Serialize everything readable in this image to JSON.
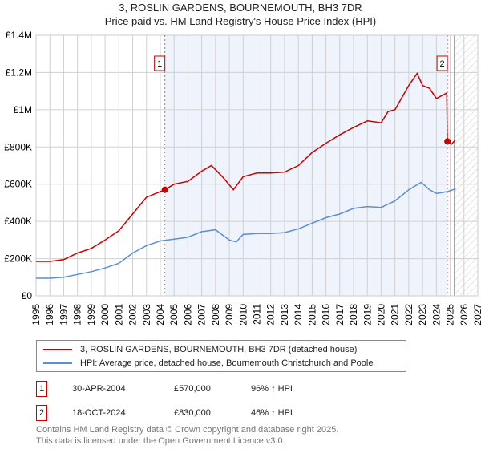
{
  "chart_data": {
    "type": "line",
    "title": "3, ROSLIN GARDENS, BOURNEMOUTH, BH3 7DR",
    "subtitle": "Price paid vs. HM Land Registry's House Price Index (HPI)",
    "xlim": [
      1995,
      2027
    ],
    "ylim": [
      0,
      1400000
    ],
    "x_ticks": [
      "1995",
      "1996",
      "1997",
      "1998",
      "1999",
      "2000",
      "2001",
      "2002",
      "2003",
      "2004",
      "2005",
      "2006",
      "2007",
      "2008",
      "2009",
      "2010",
      "2011",
      "2012",
      "2013",
      "2014",
      "2015",
      "2016",
      "2017",
      "2018",
      "2019",
      "2020",
      "2021",
      "2022",
      "2023",
      "2024",
      "2025",
      "2026",
      "2027"
    ],
    "y_ticks": [
      {
        "v": 0,
        "label": "£0"
      },
      {
        "v": 200000,
        "label": "£200K"
      },
      {
        "v": 400000,
        "label": "£400K"
      },
      {
        "v": 600000,
        "label": "£600K"
      },
      {
        "v": 800000,
        "label": "£800K"
      },
      {
        "v": 1000000,
        "label": "£1M"
      },
      {
        "v": 1200000,
        "label": "£1.2M"
      },
      {
        "v": 1400000,
        "label": "£1.4M"
      }
    ],
    "grid": true,
    "series": [
      {
        "name": "3, ROSLIN GARDENS, BOURNEMOUTH, BH3 7DR (detached house)",
        "color": "#cc0000",
        "x": [
          1995,
          1996,
          1997,
          1998,
          1999,
          2000,
          2001,
          2002,
          2003,
          2004.33,
          2005,
          2006,
          2007,
          2007.7,
          2008.5,
          2009.3,
          2010,
          2011,
          2012,
          2013,
          2014,
          2015,
          2016,
          2017,
          2018,
          2019,
          2020,
          2020.5,
          2021,
          2022,
          2022.6,
          2023,
          2023.5,
          2024,
          2024.75,
          2024.8,
          2025.1,
          2025.4
        ],
        "y": [
          185000,
          185000,
          195000,
          230000,
          255000,
          300000,
          350000,
          440000,
          530000,
          570000,
          600000,
          615000,
          670000,
          700000,
          640000,
          570000,
          640000,
          660000,
          660000,
          665000,
          700000,
          770000,
          820000,
          865000,
          905000,
          940000,
          930000,
          990000,
          1000000,
          1130000,
          1195000,
          1130000,
          1115000,
          1060000,
          1090000,
          830000,
          815000,
          840000
        ]
      },
      {
        "name": "HPI: Average price, detached house, Bournemouth Christchurch and Poole",
        "color": "#5b8fd0",
        "x": [
          1995,
          1996,
          1997,
          1998,
          1999,
          2000,
          2001,
          2002,
          2003,
          2004,
          2005,
          2006,
          2007,
          2008,
          2009,
          2009.5,
          2010,
          2011,
          2012,
          2013,
          2014,
          2015,
          2016,
          2017,
          2018,
          2019,
          2020,
          2021,
          2022,
          2022.9,
          2023.5,
          2024,
          2024.8,
          2025.4
        ],
        "y": [
          95000,
          95000,
          100000,
          115000,
          130000,
          150000,
          175000,
          230000,
          270000,
          295000,
          305000,
          315000,
          345000,
          355000,
          300000,
          290000,
          330000,
          335000,
          335000,
          340000,
          360000,
          390000,
          420000,
          440000,
          470000,
          480000,
          475000,
          510000,
          570000,
          610000,
          570000,
          550000,
          560000,
          575000
        ]
      }
    ],
    "annotations": [
      {
        "label": "1",
        "x": 2004.33,
        "y": 570000
      },
      {
        "label": "2",
        "x": 2024.8,
        "y": 830000
      }
    ],
    "forecast_start": 2025.3
  },
  "legend": {
    "red": "3, ROSLIN GARDENS, BOURNEMOUTH, BH3 7DR (detached house)",
    "blue": "HPI: Average price, detached house, Bournemouth Christchurch and Poole"
  },
  "sales": [
    {
      "num": "1",
      "date": "30-APR-2004",
      "price": "£570,000",
      "hpi": "96% ↑ HPI"
    },
    {
      "num": "2",
      "date": "18-OCT-2024",
      "price": "£830,000",
      "hpi": "46% ↑ HPI"
    }
  ],
  "footer": {
    "line1": "Contains HM Land Registry data © Crown copyright and database right 2025.",
    "line2": "This data is licensed under the Open Government Licence v3.0."
  }
}
